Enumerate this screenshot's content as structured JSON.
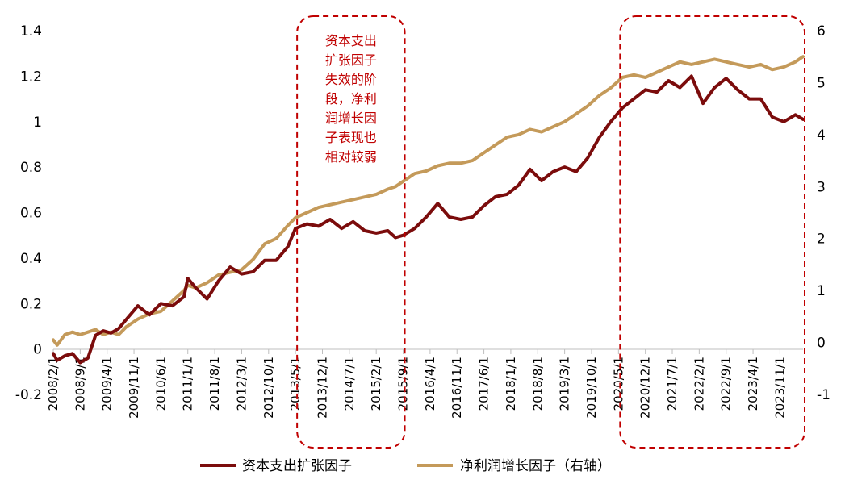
{
  "chart_data": {
    "type": "line",
    "title": "",
    "xlabel": "",
    "ylabel": "",
    "ylim_left": [
      -0.2,
      1.4
    ],
    "ylim_right": [
      -1,
      6
    ],
    "y_left_ticks": [
      "-0.2",
      "0",
      "0.2",
      "0.4",
      "0.6",
      "0.8",
      "1",
      "1.2",
      "1.4"
    ],
    "y_right_ticks": [
      "-1",
      "0",
      "1",
      "2",
      "3",
      "4",
      "5",
      "6"
    ],
    "x_tick_labels": [
      "2008/2/1",
      "2008/9/1",
      "2009/4/1",
      "2009/11/1",
      "2010/6/1",
      "2011/1/1",
      "2011/8/1",
      "2012/3/1",
      "2012/10/1",
      "2013/5/1",
      "2013/12/1",
      "2014/7/1",
      "2015/2/1",
      "2015/9/1",
      "2016/4/1",
      "2016/11/1",
      "2017/6/1",
      "2018/1/1",
      "2018/8/1",
      "2019/3/1",
      "2019/10/1",
      "2020/5/1",
      "2020/12/1",
      "2021/7/1",
      "2022/2/1",
      "2022/9/1",
      "2023/4/1",
      "2023/11/1"
    ],
    "x_range": [
      "2008/2/1",
      "2024/5/1"
    ],
    "grid": false,
    "legend_position": "bottom",
    "series": [
      {
        "name": "资本支出扩张因子",
        "axis": "left",
        "color": "#7b0c0c",
        "dates": [
          "2008/2/1",
          "2008/3/1",
          "2008/5/1",
          "2008/7/1",
          "2008/9/1",
          "2008/11/1",
          "2009/1/1",
          "2009/3/1",
          "2009/5/1",
          "2009/7/1",
          "2009/9/1",
          "2009/12/1",
          "2010/3/1",
          "2010/6/1",
          "2010/9/1",
          "2010/12/1",
          "2011/1/1",
          "2011/3/1",
          "2011/6/1",
          "2011/9/1",
          "2011/12/1",
          "2012/3/1",
          "2012/6/1",
          "2012/9/1",
          "2012/12/1",
          "2013/3/1",
          "2013/5/1",
          "2013/8/1",
          "2013/11/1",
          "2014/2/1",
          "2014/5/1",
          "2014/8/1",
          "2014/11/1",
          "2015/2/1",
          "2015/5/1",
          "2015/7/1",
          "2015/9/1",
          "2015/12/1",
          "2016/3/1",
          "2016/6/1",
          "2016/9/1",
          "2016/12/1",
          "2017/3/1",
          "2017/6/1",
          "2017/9/1",
          "2017/12/1",
          "2018/3/1",
          "2018/6/1",
          "2018/9/1",
          "2018/12/1",
          "2019/3/1",
          "2019/6/1",
          "2019/9/1",
          "2019/12/1",
          "2020/3/1",
          "2020/6/1",
          "2020/9/1",
          "2020/12/1",
          "2021/3/1",
          "2021/6/1",
          "2021/9/1",
          "2021/12/1",
          "2022/3/1",
          "2022/6/1",
          "2022/9/1",
          "2022/12/1",
          "2023/3/1",
          "2023/6/1",
          "2023/9/1",
          "2023/12/1",
          "2024/3/1",
          "2024/5/1"
        ],
        "values": [
          -0.02,
          -0.05,
          -0.03,
          -0.02,
          -0.06,
          -0.04,
          0.06,
          0.08,
          0.07,
          0.09,
          0.13,
          0.19,
          0.15,
          0.2,
          0.19,
          0.23,
          0.31,
          0.27,
          0.22,
          0.3,
          0.36,
          0.33,
          0.34,
          0.39,
          0.39,
          0.45,
          0.53,
          0.55,
          0.54,
          0.57,
          0.53,
          0.56,
          0.52,
          0.51,
          0.52,
          0.49,
          0.5,
          0.53,
          0.58,
          0.64,
          0.58,
          0.57,
          0.58,
          0.63,
          0.67,
          0.68,
          0.72,
          0.79,
          0.74,
          0.78,
          0.8,
          0.78,
          0.84,
          0.93,
          1.0,
          1.06,
          1.1,
          1.14,
          1.13,
          1.18,
          1.15,
          1.2,
          1.08,
          1.15,
          1.19,
          1.14,
          1.1,
          1.1,
          1.02,
          1.0,
          1.03,
          1.01
        ]
      },
      {
        "name": "净利润增长因子（右轴）",
        "axis": "right",
        "color": "#c49a5a",
        "dates": [
          "2008/2/1",
          "2008/3/1",
          "2008/5/1",
          "2008/7/1",
          "2008/9/1",
          "2008/11/1",
          "2009/1/1",
          "2009/3/1",
          "2009/5/1",
          "2009/7/1",
          "2009/9/1",
          "2009/12/1",
          "2010/3/1",
          "2010/6/1",
          "2010/9/1",
          "2010/12/1",
          "2011/1/1",
          "2011/3/1",
          "2011/6/1",
          "2011/9/1",
          "2011/12/1",
          "2012/3/1",
          "2012/6/1",
          "2012/9/1",
          "2012/12/1",
          "2013/3/1",
          "2013/5/1",
          "2013/8/1",
          "2013/11/1",
          "2014/2/1",
          "2014/5/1",
          "2014/8/1",
          "2014/11/1",
          "2015/2/1",
          "2015/5/1",
          "2015/7/1",
          "2015/9/1",
          "2015/12/1",
          "2016/3/1",
          "2016/6/1",
          "2016/9/1",
          "2016/12/1",
          "2017/3/1",
          "2017/6/1",
          "2017/9/1",
          "2017/12/1",
          "2018/3/1",
          "2018/6/1",
          "2018/9/1",
          "2018/12/1",
          "2019/3/1",
          "2019/6/1",
          "2019/9/1",
          "2019/12/1",
          "2020/3/1",
          "2020/6/1",
          "2020/9/1",
          "2020/12/1",
          "2021/3/1",
          "2021/6/1",
          "2021/9/1",
          "2021/12/1",
          "2022/3/1",
          "2022/6/1",
          "2022/9/1",
          "2022/12/1",
          "2023/3/1",
          "2023/6/1",
          "2023/9/1",
          "2023/12/1",
          "2024/3/1",
          "2024/5/1"
        ],
        "values": [
          0.05,
          -0.05,
          0.15,
          0.2,
          0.15,
          0.2,
          0.25,
          0.15,
          0.2,
          0.15,
          0.3,
          0.45,
          0.55,
          0.6,
          0.8,
          1.0,
          1.1,
          1.05,
          1.15,
          1.3,
          1.35,
          1.4,
          1.6,
          1.9,
          2.0,
          2.25,
          2.4,
          2.5,
          2.6,
          2.65,
          2.7,
          2.75,
          2.8,
          2.85,
          2.95,
          3.0,
          3.1,
          3.25,
          3.3,
          3.4,
          3.45,
          3.45,
          3.5,
          3.65,
          3.8,
          3.95,
          4.0,
          4.1,
          4.05,
          4.15,
          4.25,
          4.4,
          4.55,
          4.75,
          4.9,
          5.1,
          5.15,
          5.1,
          5.2,
          5.3,
          5.4,
          5.35,
          5.4,
          5.45,
          5.4,
          5.35,
          5.3,
          5.35,
          5.25,
          5.3,
          5.4,
          5.5
        ]
      }
    ],
    "annotations": [
      {
        "name": "box-2013-2015",
        "text_lines": [
          "资本支出",
          "扩张因子",
          "失效的阶",
          "段，净利",
          "润增长因",
          "子表现也",
          "相对较弱"
        ],
        "x_start": "2013/5/1",
        "x_end": "2015/9/1"
      },
      {
        "name": "box-2020-2024",
        "text_lines": [],
        "x_start": "2020/5/1",
        "x_end": "2024/5/1"
      }
    ]
  }
}
